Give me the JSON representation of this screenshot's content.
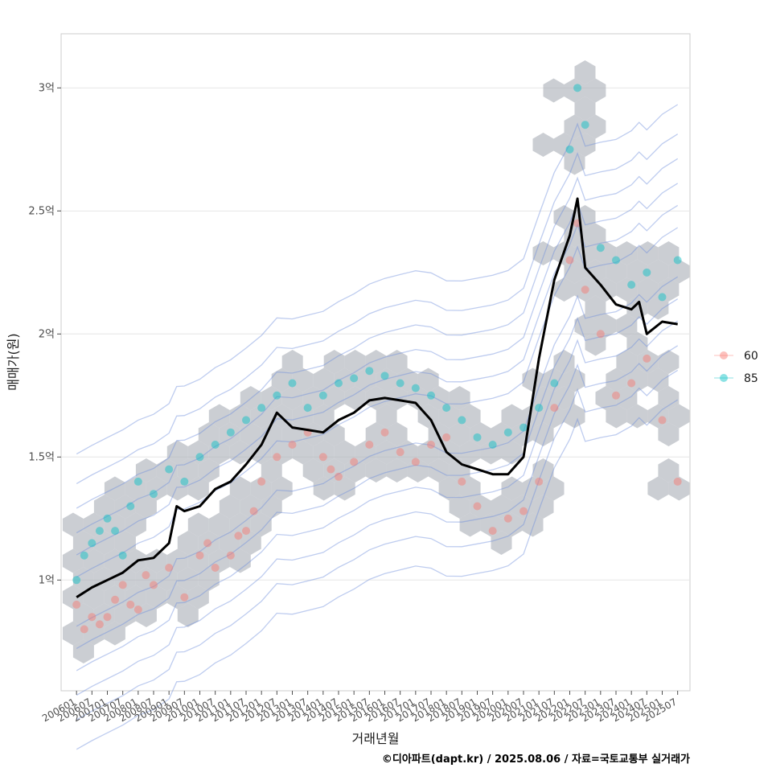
{
  "chart_data": {
    "type": "scatter",
    "xlabel": "거래년월",
    "ylabel": "매매가(원)",
    "caption": "©디아파트(dapt.kr) / 2025.08.06 / 자료=국토교통부 실거래가",
    "x_ticks": [
      "200601",
      "200607",
      "200701",
      "200707",
      "200801",
      "200807",
      "200901",
      "200907",
      "201001",
      "201007",
      "201101",
      "201107",
      "201201",
      "201207",
      "201301",
      "201307",
      "201401",
      "201407",
      "201501",
      "201507",
      "201601",
      "201607",
      "201701",
      "201707",
      "201801",
      "201807",
      "201901",
      "201907",
      "202001",
      "202007",
      "202101",
      "202107",
      "202201",
      "202207",
      "202301",
      "202307",
      "202401",
      "202407",
      "202501",
      "202507"
    ],
    "x_range_months": [
      2005.5,
      2025.9
    ],
    "y_ticks": [
      {
        "value": 100000000,
        "label": "1억"
      },
      {
        "value": 150000000,
        "label": "1.5억"
      },
      {
        "value": 200000000,
        "label": "2억"
      },
      {
        "value": 250000000,
        "label": "2.5억"
      },
      {
        "value": 300000000,
        "label": "3억"
      }
    ],
    "ylim": [
      55000000,
      322000000
    ],
    "grid": true,
    "legend_position": "right",
    "legend": [
      {
        "label": "60",
        "color": "#f8766d"
      },
      {
        "label": "85",
        "color": "#00bfc4"
      }
    ],
    "hexbin_color": "#a8adb5",
    "contour_color": "#6f8fdc",
    "trend_color": "#000000",
    "series": [
      {
        "name": "trend",
        "kind": "line",
        "x": [
          "2006-01",
          "2006-07",
          "2007-01",
          "2007-07",
          "2008-01",
          "2008-07",
          "2009-01",
          "2009-04",
          "2009-07",
          "2010-01",
          "2010-07",
          "2011-01",
          "2011-07",
          "2012-01",
          "2012-07",
          "2013-01",
          "2013-07",
          "2014-01",
          "2014-07",
          "2015-01",
          "2015-07",
          "2016-01",
          "2016-07",
          "2017-01",
          "2017-07",
          "2018-01",
          "2018-07",
          "2019-01",
          "2019-07",
          "2020-01",
          "2020-07",
          "2021-01",
          "2021-07",
          "2022-01",
          "2022-04",
          "2022-07",
          "2023-01",
          "2023-07",
          "2024-01",
          "2024-04",
          "2024-07",
          "2025-01",
          "2025-07"
        ],
        "y": [
          93000000,
          97000000,
          100000000,
          103000000,
          108000000,
          109000000,
          115000000,
          130000000,
          128000000,
          130000000,
          137000000,
          140000000,
          147000000,
          155000000,
          168000000,
          162000000,
          161000000,
          160000000,
          165000000,
          168000000,
          173000000,
          174000000,
          173000000,
          172000000,
          165000000,
          152000000,
          147000000,
          145000000,
          143000000,
          143000000,
          150000000,
          190000000,
          222000000,
          240000000,
          255000000,
          227000000,
          220000000,
          212000000,
          210000000,
          213000000,
          200000000,
          205000000,
          204000000
        ]
      },
      {
        "name": "60",
        "kind": "points",
        "x": [
          "2006-01",
          "2006-04",
          "2006-07",
          "2006-10",
          "2007-01",
          "2007-04",
          "2007-07",
          "2007-10",
          "2008-01",
          "2008-04",
          "2008-07",
          "2009-01",
          "2009-07",
          "2010-01",
          "2010-04",
          "2010-07",
          "2011-01",
          "2011-04",
          "2011-07",
          "2011-10",
          "2012-01",
          "2012-07",
          "2013-01",
          "2013-07",
          "2014-01",
          "2014-04",
          "2014-07",
          "2015-01",
          "2015-07",
          "2016-01",
          "2016-07",
          "2017-01",
          "2017-07",
          "2018-01",
          "2018-07",
          "2019-01",
          "2019-07",
          "2020-01",
          "2020-07",
          "2021-01",
          "2021-07",
          "2022-01",
          "2022-04",
          "2022-07",
          "2023-01",
          "2023-07",
          "2024-01",
          "2024-07",
          "2025-01",
          "2025-07"
        ],
        "y": [
          90000000,
          80000000,
          85000000,
          82000000,
          85000000,
          92000000,
          98000000,
          90000000,
          88000000,
          102000000,
          98000000,
          105000000,
          93000000,
          110000000,
          115000000,
          105000000,
          110000000,
          118000000,
          120000000,
          128000000,
          140000000,
          150000000,
          155000000,
          160000000,
          150000000,
          145000000,
          142000000,
          148000000,
          155000000,
          160000000,
          152000000,
          148000000,
          155000000,
          158000000,
          140000000,
          130000000,
          120000000,
          125000000,
          128000000,
          140000000,
          170000000,
          230000000,
          245000000,
          218000000,
          200000000,
          175000000,
          180000000,
          190000000,
          165000000,
          140000000
        ]
      },
      {
        "name": "85",
        "kind": "points",
        "x": [
          "2006-01",
          "2006-04",
          "2006-07",
          "2006-10",
          "2007-01",
          "2007-04",
          "2007-07",
          "2007-10",
          "2008-01",
          "2008-07",
          "2009-01",
          "2009-07",
          "2010-01",
          "2010-07",
          "2011-01",
          "2011-07",
          "2012-01",
          "2012-07",
          "2013-01",
          "2013-07",
          "2014-01",
          "2014-07",
          "2015-01",
          "2015-07",
          "2016-01",
          "2016-07",
          "2017-01",
          "2017-07",
          "2018-01",
          "2018-07",
          "2019-01",
          "2019-07",
          "2020-01",
          "2020-07",
          "2021-01",
          "2021-07",
          "2022-01",
          "2022-04",
          "2022-07",
          "2023-01",
          "2023-07",
          "2024-01",
          "2024-07",
          "2025-01",
          "2025-07"
        ],
        "y": [
          100000000,
          110000000,
          115000000,
          120000000,
          125000000,
          120000000,
          110000000,
          130000000,
          140000000,
          135000000,
          145000000,
          140000000,
          150000000,
          155000000,
          160000000,
          165000000,
          170000000,
          175000000,
          180000000,
          170000000,
          175000000,
          180000000,
          182000000,
          185000000,
          183000000,
          180000000,
          178000000,
          175000000,
          170000000,
          165000000,
          158000000,
          155000000,
          160000000,
          162000000,
          170000000,
          180000000,
          275000000,
          300000000,
          285000000,
          235000000,
          230000000,
          220000000,
          225000000,
          215000000,
          230000000
        ]
      }
    ]
  }
}
